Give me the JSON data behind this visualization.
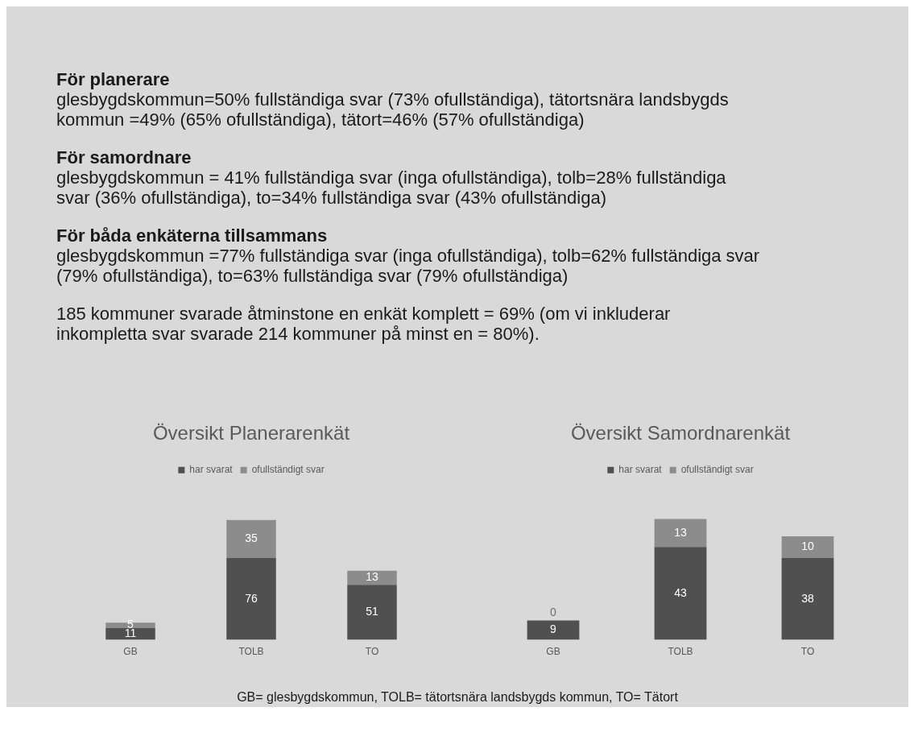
{
  "chart_data": [
    {
      "type": "other",
      "annotations": [
        "För planerare\nglesbygdskommun=50% fullständiga svar (73% ofullständiga), tätortsnära landsbygds kommun =49% (65% ofullständiga), tätort=46% (57% ofullständiga)",
        "För samordnare\nglesbygdskommun = 41% fullständiga svar (inga ofullständiga), tolb=28% fullständiga svar (36% ofullständiga), to=34% fullständiga svar (43% ofullständiga)",
        "För båda enkäterna tillsammans\nglesbygdskommun =77% fullständiga svar (inga ofullständiga), tolb=62% fullständiga svar (79% ofullständiga), to=63% fullständiga svar (79% ofullständiga)",
        "185 kommuner svarade åtminstone en enkät komplett = 69% (om vi inkluderar inkompletta svar svarade 214 kommuner på minst en = 80%)."
      ]
    },
    {
      "type": "bar",
      "title": "Översikt Planerarenkät",
      "categories": [
        "GB",
        "TOLB",
        "TO"
      ],
      "stacked": true,
      "data_labels": true,
      "legend": "top",
      "grid": false,
      "series": [
        {
          "name": "har svarat",
          "color": "#505050",
          "values": [
            11,
            76,
            51
          ]
        },
        {
          "name": "ofullständigt svar",
          "color": "#8c8c8c",
          "values": [
            5,
            35,
            13
          ]
        }
      ]
    },
    {
      "type": "bar",
      "title": "Översikt Samordnarenkät",
      "categories": [
        "GB",
        "TOLB",
        "TO"
      ],
      "stacked": true,
      "data_labels": true,
      "legend": "top",
      "grid": false,
      "series": [
        {
          "name": "har svarat",
          "color": "#505050",
          "values": [
            9,
            43,
            38
          ]
        },
        {
          "name": "ofullständigt svar",
          "color": "#8c8c8c",
          "values": [
            0,
            13,
            10
          ]
        }
      ]
    },
    {
      "type": "other",
      "annotations": [
        "GB= glesbygdskommun, TOLB= tätortsnära landsbygds kommun, TO= Tätort"
      ]
    }
  ]
}
